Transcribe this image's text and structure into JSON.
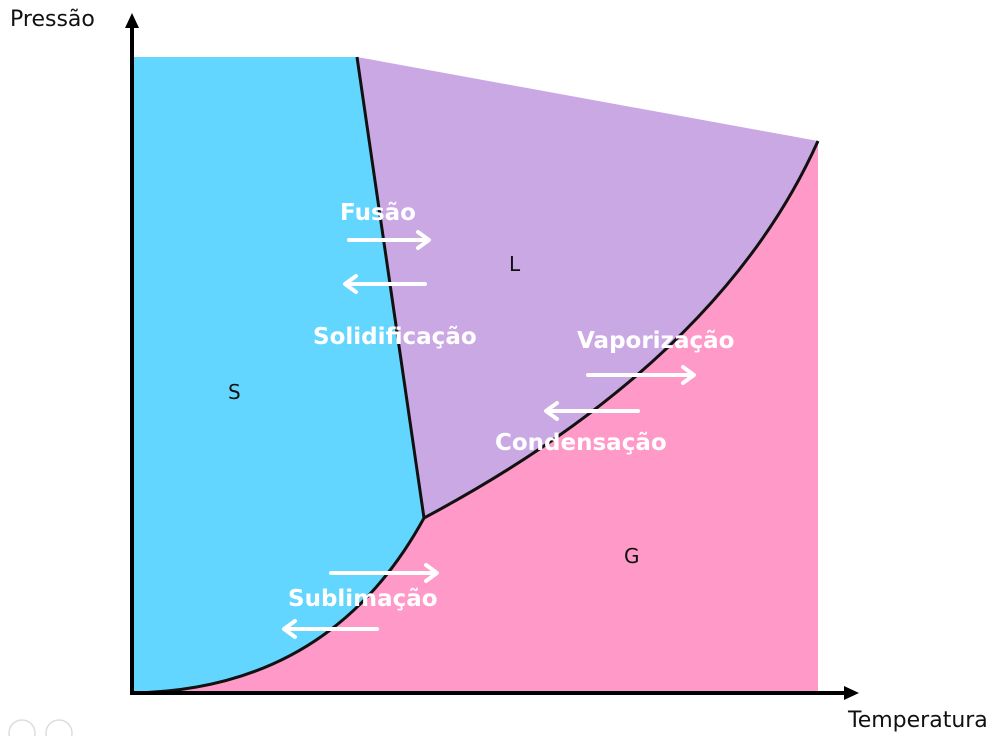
{
  "axes": {
    "y_label": "Pressão",
    "x_label": "Temperatura"
  },
  "regions": {
    "solid": {
      "label": "S",
      "color": "#62D6FF"
    },
    "liquid": {
      "label": "L",
      "color": "#C9A8E4"
    },
    "gas": {
      "label": "G",
      "color": "#FF99C8"
    }
  },
  "processes": {
    "fusion": "Fusão",
    "solidification": "Solidificação",
    "vaporization": "Vaporização",
    "condensation": "Condensação",
    "sublimation": "Sublimação"
  },
  "colors": {
    "arrow": "#FFFFFF",
    "boundary": "#111111"
  }
}
